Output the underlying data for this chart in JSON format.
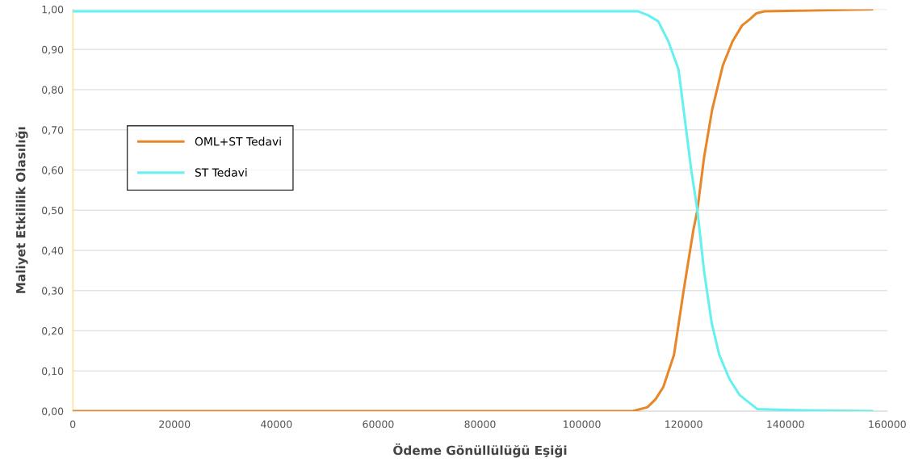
{
  "chart_data": {
    "type": "line",
    "xlabel": "Ödeme Gönüllülüğü Eşiği",
    "ylabel": "Maliyet Etkililik Olasılığı",
    "xlim": [
      0,
      160000
    ],
    "xticks": [
      0,
      20000,
      40000,
      60000,
      80000,
      100000,
      120000,
      140000,
      160000
    ],
    "ylim": [
      0,
      1
    ],
    "yticks": [
      {
        "value": 0,
        "label": "0,00"
      },
      {
        "value": 0.1,
        "label": "0,10"
      },
      {
        "value": 0.2,
        "label": "0,20"
      },
      {
        "value": 0.3,
        "label": "0,30"
      },
      {
        "value": 0.4,
        "label": "0,40"
      },
      {
        "value": 0.5,
        "label": "0,50"
      },
      {
        "value": 0.6,
        "label": "0,60"
      },
      {
        "value": 0.7,
        "label": "0,70"
      },
      {
        "value": 0.8,
        "label": "0,80"
      },
      {
        "value": 0.9,
        "label": "0,90"
      },
      {
        "value": 1,
        "label": "1,00"
      }
    ],
    "grid": "y",
    "legend": "left",
    "marker": "none",
    "line_style": "solid",
    "series": [
      {
        "name": "OML+ST Tedavi",
        "color": "#e8872a",
        "x": [
          0,
          110000,
          112900,
          114500,
          116000,
          118100,
          120000,
          121900,
          122700,
          124000,
          125600,
          127700,
          129600,
          131500,
          133000,
          134300,
          135900,
          144700,
          157000
        ],
        "values": [
          0,
          0,
          0.01,
          0.03,
          0.06,
          0.14,
          0.3,
          0.45,
          0.5,
          0.63,
          0.75,
          0.86,
          0.92,
          0.96,
          0.975,
          0.99,
          0.995,
          0.997,
          1.0
        ]
      },
      {
        "name": "ST Tedavi",
        "color": "#66f0f0",
        "x": [
          0,
          111000,
          113000,
          115000,
          117000,
          119000,
          120500,
          121500,
          122700,
          124000,
          125500,
          127000,
          129000,
          131000,
          133000,
          134500,
          140000,
          144000,
          157000
        ],
        "values": [
          0.995,
          0.995,
          0.985,
          0.97,
          0.92,
          0.85,
          0.7,
          0.6,
          0.5,
          0.35,
          0.22,
          0.14,
          0.08,
          0.04,
          0.02,
          0.005,
          0.003,
          0.002,
          0
        ]
      }
    ]
  }
}
